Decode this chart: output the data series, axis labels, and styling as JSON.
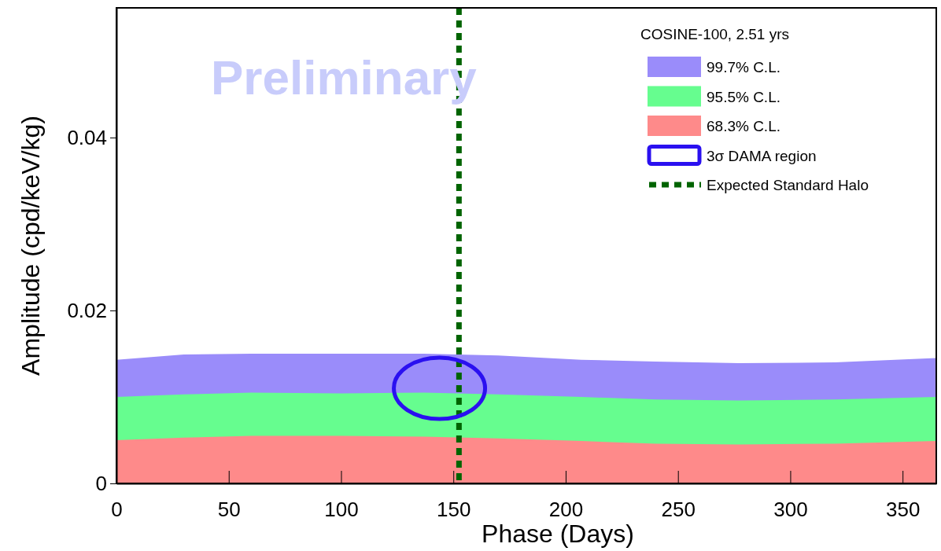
{
  "chart_data": {
    "type": "area",
    "xlabel": "Phase (Days)",
    "ylabel": "Amplitude (cpd/keV/kg)",
    "legend_title": "COSINE-100, 2.51 yrs",
    "x": [
      0,
      30,
      60,
      100,
      137,
      170,
      207,
      240,
      277,
      320,
      365
    ],
    "series": [
      {
        "name": "99.7% C.L.",
        "color": "#9a8cfa",
        "values": [
          0.0143,
          0.0149,
          0.015,
          0.015,
          0.015,
          0.0148,
          0.0143,
          0.0141,
          0.0139,
          0.014,
          0.0145
        ]
      },
      {
        "name": "95.5% C.L.",
        "color": "#66fd8f",
        "values": [
          0.01,
          0.0103,
          0.0105,
          0.0104,
          0.0105,
          0.0103,
          0.01,
          0.0097,
          0.0096,
          0.0097,
          0.01
        ]
      },
      {
        "name": "68.3% C.L.",
        "color": "#fe8a8a",
        "values": [
          0.005,
          0.0053,
          0.0055,
          0.0055,
          0.0054,
          0.0052,
          0.0049,
          0.0046,
          0.0045,
          0.0046,
          0.0049
        ]
      }
    ],
    "ref_lines": [
      {
        "axis": "x",
        "value": 152.5,
        "color": "#006400",
        "line_style": "dashed"
      }
    ],
    "annotations": [
      "Preliminary",
      "3σ DAMA region",
      "Expected Standard Halo"
    ],
    "xlim": [
      0,
      365
    ],
    "xticks": [
      0,
      50,
      100,
      150,
      200,
      250,
      300,
      350
    ],
    "ylim": [
      0,
      0.055
    ],
    "yticks": [
      {
        "value": 0,
        "label": "0"
      },
      {
        "value": 0.02,
        "label": "0.02"
      },
      {
        "value": 0.04,
        "label": "0.04"
      }
    ],
    "legend": "top right",
    "grid": false
  }
}
